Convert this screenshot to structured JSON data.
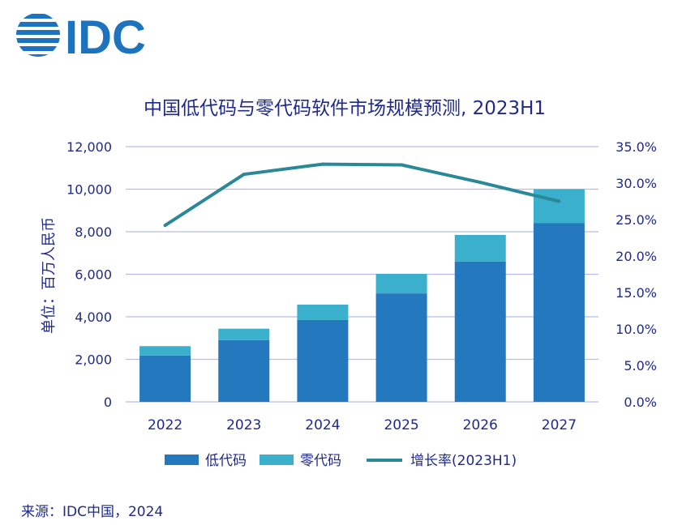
{
  "logo": {
    "text": "IDC",
    "color": "#1e73be"
  },
  "chart_data": {
    "type": "bar+line",
    "title": "中国低代码与零代码软件市场规模预测, 2023H1",
    "categories": [
      "2022",
      "2023",
      "2024",
      "2025",
      "2026",
      "2027"
    ],
    "series": [
      {
        "name": "低代码",
        "type": "stacked-bar",
        "axis": "left",
        "color": "#2478be",
        "values": [
          2180,
          2900,
          3850,
          5100,
          6600,
          8400
        ]
      },
      {
        "name": "零代码",
        "type": "stacked-bar",
        "axis": "left",
        "color": "#3ab0cd",
        "values": [
          440,
          540,
          720,
          920,
          1250,
          1600
        ]
      },
      {
        "name": "增长率(2023H1)",
        "type": "line",
        "axis": "right",
        "color": "#2a8897",
        "values": [
          24.2,
          31.2,
          32.6,
          32.5,
          30.1,
          27.5
        ]
      }
    ],
    "ylabel": "单位：百万人民币",
    "ylim": [
      0,
      12000
    ],
    "yticks": [
      "0",
      "2,000",
      "4,000",
      "6,000",
      "8,000",
      "10,000",
      "12,000"
    ],
    "y2lim": [
      0,
      35
    ],
    "y2ticks": [
      "0.0%",
      "5.0%",
      "10.0%",
      "15.0%",
      "20.0%",
      "25.0%",
      "30.0%",
      "35.0%"
    ],
    "grid": true,
    "legend": "bottom"
  },
  "source": "来源：IDC中国，2024"
}
